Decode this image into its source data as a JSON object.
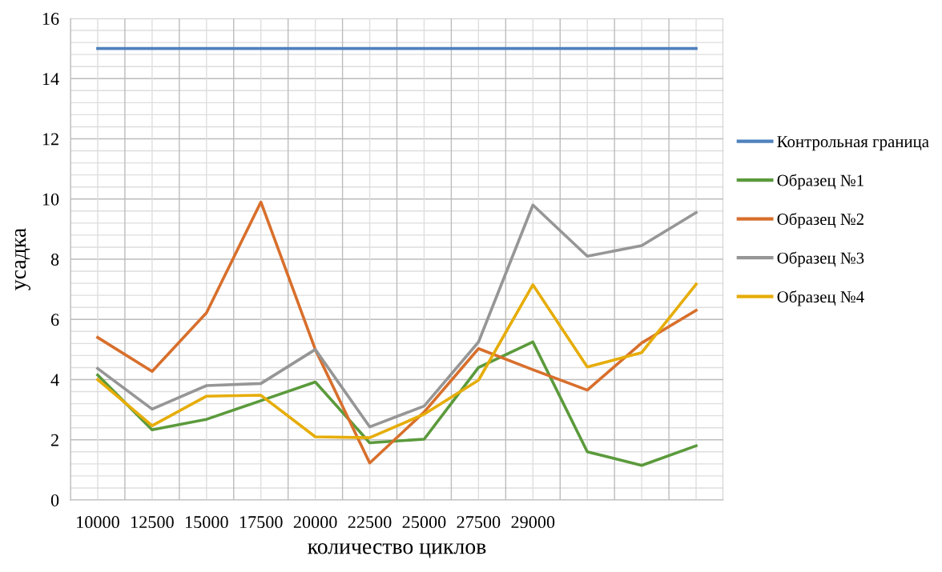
{
  "chart_data": {
    "type": "line",
    "xlabel": "количество циклов",
    "ylabel": "усадка",
    "categories": [
      "10000",
      "12500",
      "15000",
      "17500",
      "20000",
      "22500",
      "25000",
      "27500",
      "29000",
      null,
      null,
      null
    ],
    "series": [
      {
        "name": "Контрольная граница",
        "color": "#4f81bd",
        "values": [
          15,
          15,
          15,
          15,
          15,
          15,
          15,
          15,
          15,
          15,
          15,
          15
        ]
      },
      {
        "name": "Образец №1",
        "color": "#5b9a3c",
        "values": [
          4.15,
          2.33,
          2.68,
          3.3,
          3.92,
          1.9,
          2.02,
          4.4,
          5.25,
          1.6,
          1.15,
          1.8
        ]
      },
      {
        "name": "Образец №2",
        "color": "#d86f2c",
        "values": [
          5.4,
          4.27,
          6.22,
          9.9,
          5.0,
          1.23,
          2.92,
          5.03,
          4.33,
          3.65,
          5.22,
          6.3
        ]
      },
      {
        "name": "Образец №3",
        "color": "#969696",
        "values": [
          4.37,
          3.02,
          3.8,
          3.87,
          5.0,
          2.43,
          3.12,
          5.25,
          9.8,
          8.1,
          8.45,
          9.55
        ]
      },
      {
        "name": "Образец №4",
        "color": "#e6ad0a",
        "values": [
          4.0,
          2.47,
          3.45,
          3.48,
          2.1,
          2.07,
          2.85,
          3.98,
          7.15,
          4.42,
          4.9,
          7.17
        ]
      }
    ],
    "ylim": [
      0,
      16
    ],
    "yticks": [
      0,
      2,
      4,
      6,
      8,
      10,
      12,
      14,
      16
    ],
    "grid": true,
    "legend": "right",
    "marker": "none",
    "line_style": "solid"
  }
}
